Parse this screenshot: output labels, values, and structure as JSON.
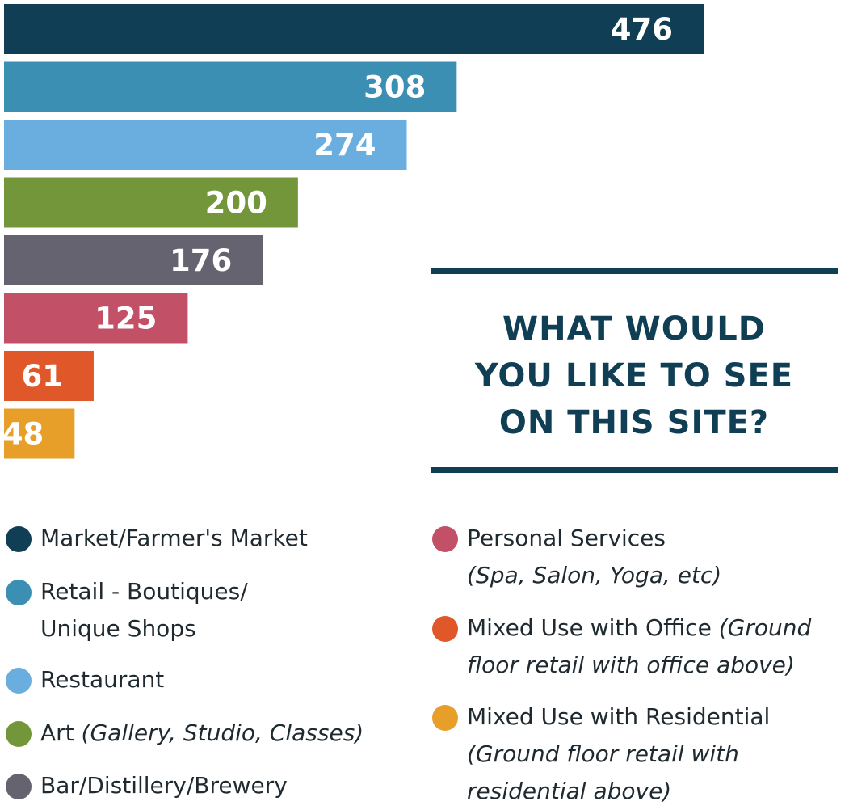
{
  "chart_data": {
    "type": "bar",
    "orientation": "horizontal",
    "title": "WHAT WOULD YOU LIKE TO SEE ON THIS SITE?",
    "title_lines": [
      "WHAT WOULD",
      "YOU LIKE TO SEE",
      "ON THIS SITE?"
    ],
    "categories": [
      "Market/Farmer's Market",
      "Retail - Boutiques/ Unique Shops",
      "Restaurant",
      "Art (Gallery, Studio, Classes)",
      "Bar/Distillery/Brewery",
      "Personal Services (Spa, Salon, Yoga, etc)",
      "Mixed Use with Office (Ground floor retail with office above)",
      "Mixed Use with Residential (Ground floor retail with residential above)"
    ],
    "values": [
      476,
      308,
      274,
      200,
      176,
      125,
      61,
      48
    ],
    "colors": [
      "#0f3e55",
      "#3a8fb2",
      "#6aaee0",
      "#74963b",
      "#666370",
      "#c25167",
      "#e0582a",
      "#e89f2a"
    ],
    "xlabel": "",
    "ylabel": "",
    "xlim": [
      0,
      476
    ],
    "grid": false,
    "legend_position": "bottom"
  },
  "legend": {
    "left": [
      {
        "label": "Market/Farmer's Market",
        "color": "#0f3e55"
      },
      {
        "label_line1": "Retail - Boutiques/",
        "label_line2": "Unique Shops",
        "color": "#3a8fb2"
      },
      {
        "label": "Restaurant",
        "color": "#6aaee0"
      },
      {
        "label": "Art ",
        "note": "(Gallery, Studio, Classes)",
        "color": "#74963b"
      },
      {
        "label": "Bar/Distillery/Brewery",
        "color": "#666370"
      }
    ],
    "right": [
      {
        "label": "Personal Services",
        "note": "(Spa, Salon, Yoga, etc)",
        "color": "#c25167"
      },
      {
        "label": "Mixed Use with Office ",
        "note_line1": "(Ground",
        "note_line2": "floor retail with office above)",
        "color": "#e0582a"
      },
      {
        "label": "Mixed Use with Residential",
        "note_line1": "(Ground floor retail with",
        "note_line2": "residential above)",
        "color": "#e89f2a"
      }
    ]
  }
}
